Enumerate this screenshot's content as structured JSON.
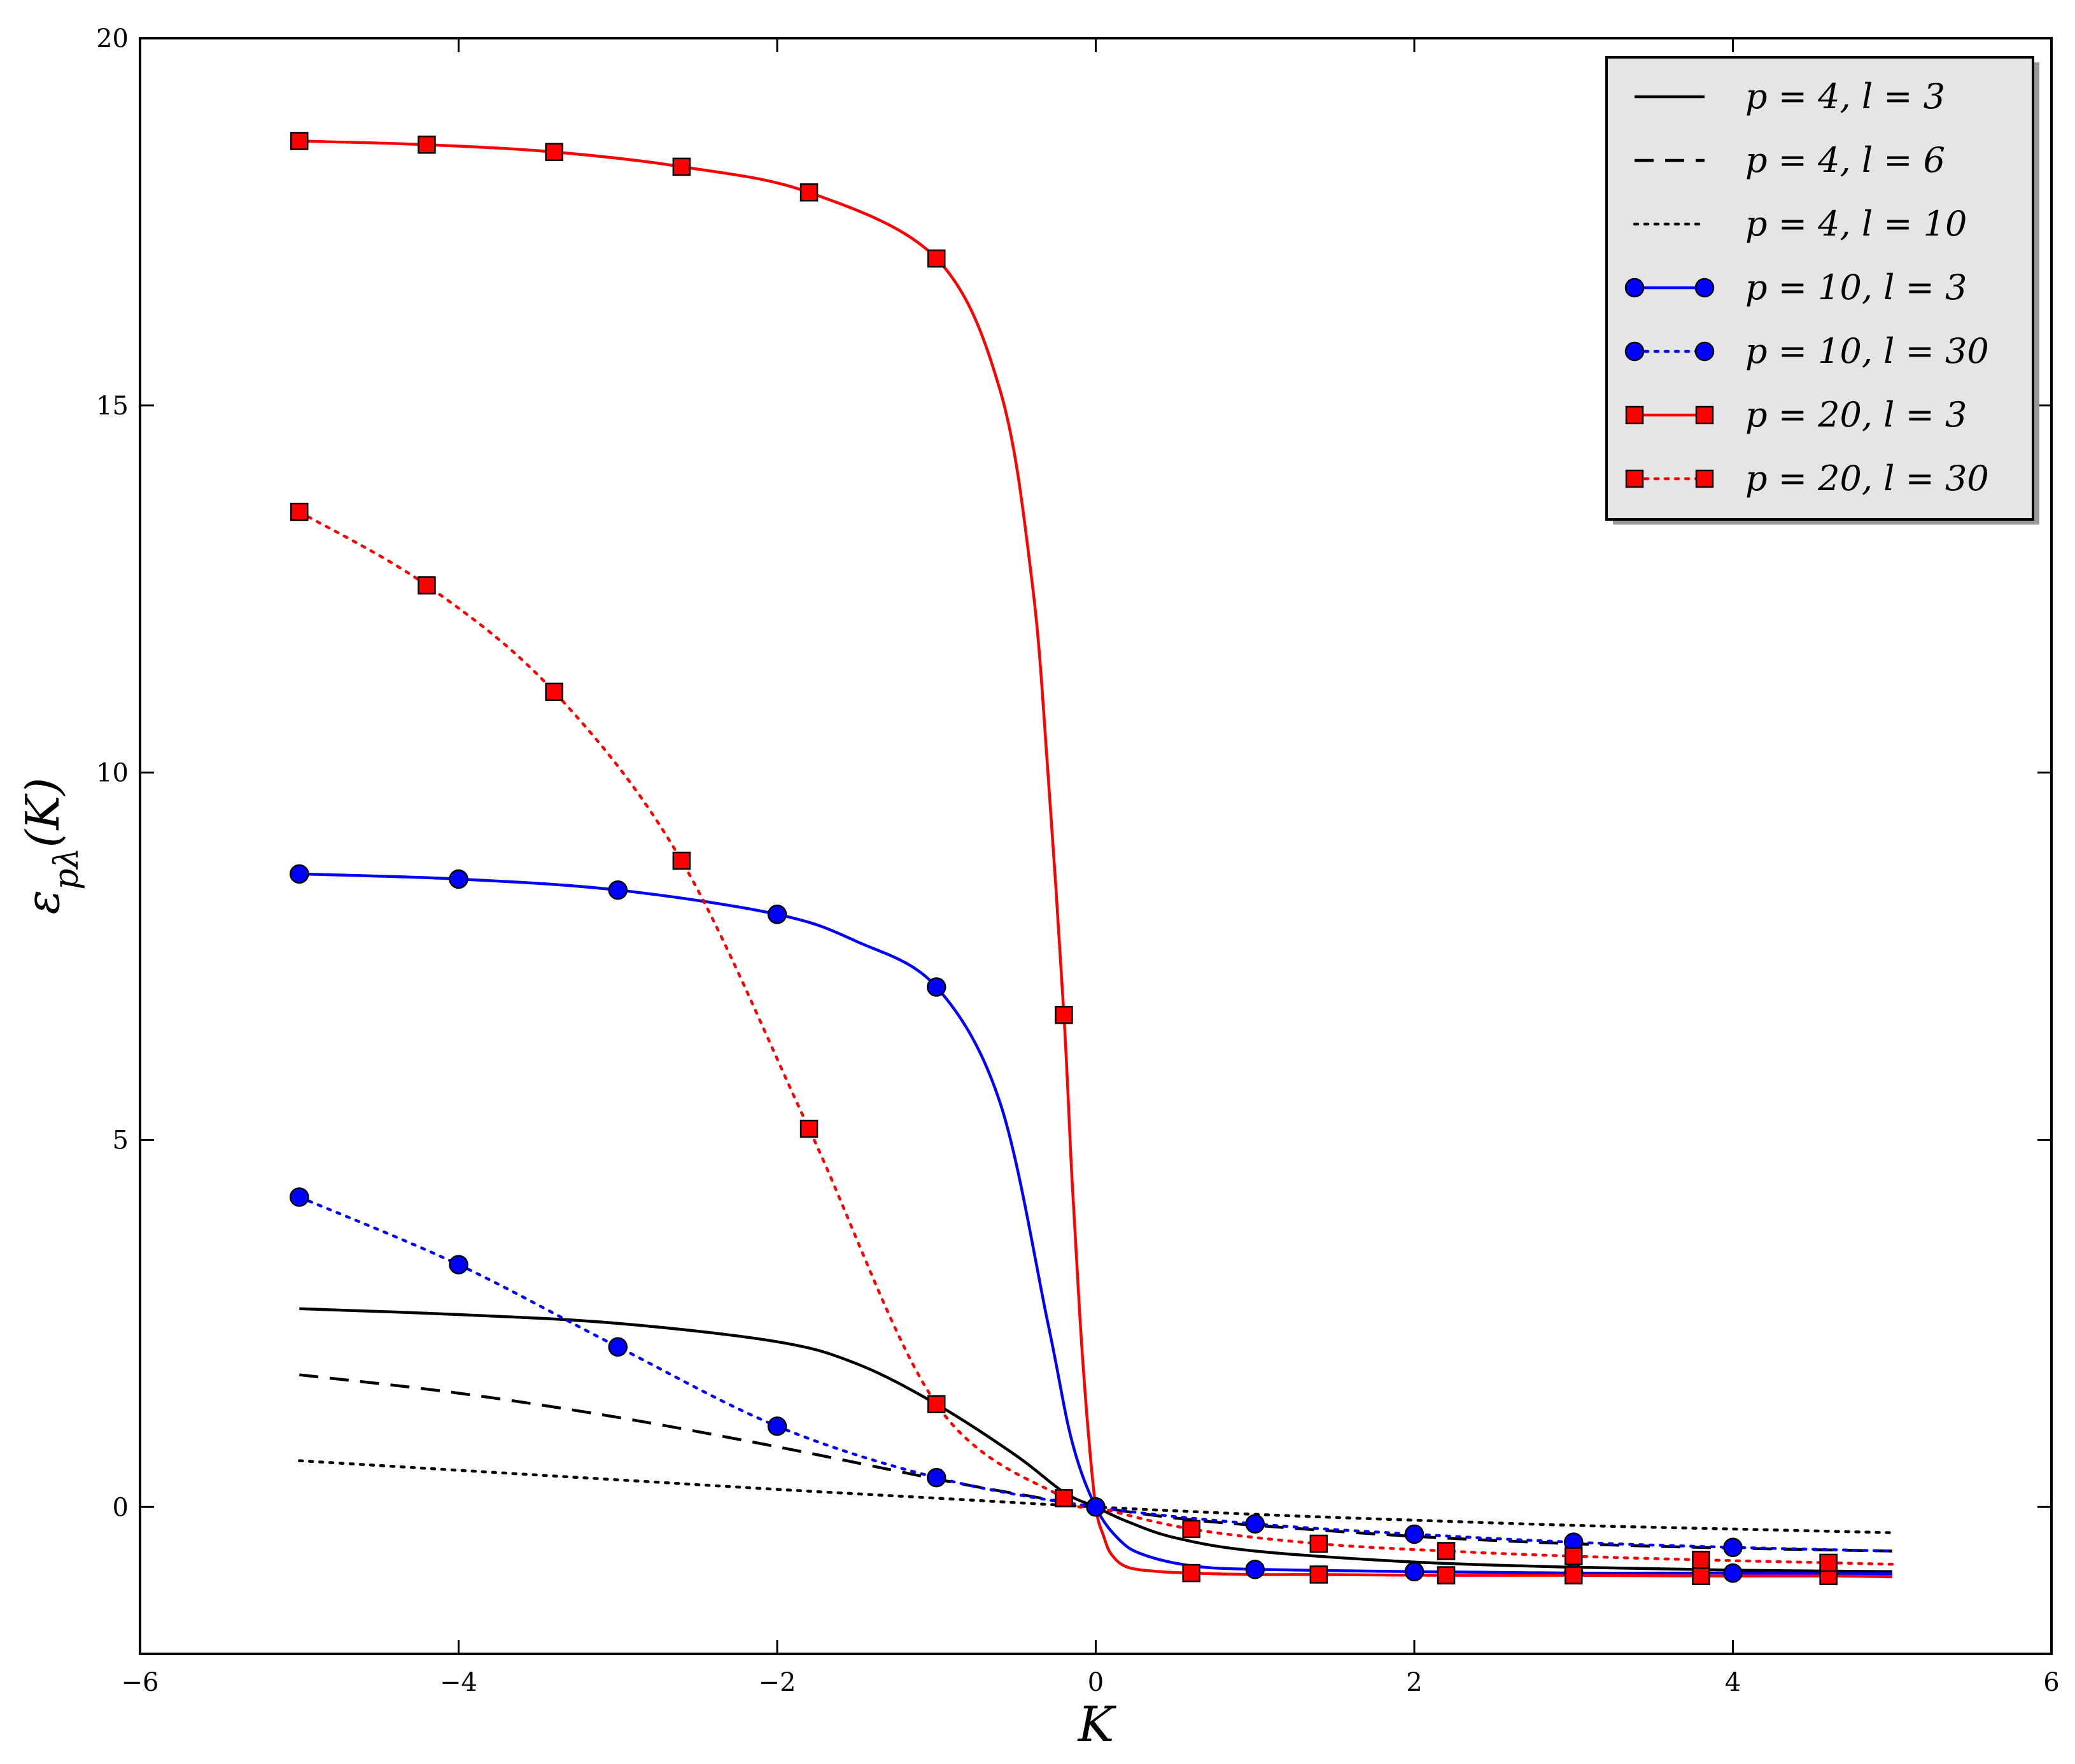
{
  "chart_data": {
    "type": "line",
    "xlabel": "K",
    "ylabel": "ε_{pλ}(K)",
    "xlim": [
      -6,
      6
    ],
    "ylim": [
      -2,
      20
    ],
    "xticks": [
      -6,
      -4,
      -2,
      0,
      2,
      4,
      6
    ],
    "xtick_labels": [
      "−6",
      "−4",
      "−2",
      "0",
      "2",
      "4",
      "6"
    ],
    "yticks": [
      0,
      5,
      10,
      15,
      20
    ],
    "ytick_labels": [
      "0",
      "5",
      "10",
      "15",
      "20"
    ],
    "grid": false,
    "legend_position": "top-right",
    "series": [
      {
        "name": "p = 4, l = 3",
        "color": "#000000",
        "dash": "solid",
        "marker": "none",
        "x": [
          -5,
          -4,
          -3,
          -2,
          -1.5,
          -1,
          -0.5,
          -0.2,
          0,
          0.2,
          0.5,
          1,
          2,
          3,
          4,
          5
        ],
        "y": [
          2.7,
          2.62,
          2.5,
          2.25,
          1.95,
          1.4,
          0.7,
          0.2,
          0,
          -0.2,
          -0.42,
          -0.6,
          -0.75,
          -0.82,
          -0.86,
          -0.88
        ]
      },
      {
        "name": "p = 4, l = 6",
        "color": "#000000",
        "dash": "dashed",
        "marker": "none",
        "x": [
          -5,
          -4,
          -3,
          -2,
          -1,
          -0.5,
          0,
          0.5,
          1,
          2,
          3,
          4,
          5
        ],
        "y": [
          1.8,
          1.55,
          1.22,
          0.82,
          0.38,
          0.18,
          0,
          -0.15,
          -0.25,
          -0.4,
          -0.5,
          -0.56,
          -0.6
        ]
      },
      {
        "name": "p = 4, l = 10",
        "color": "#000000",
        "dash": "dotted",
        "marker": "none",
        "x": [
          -5,
          -4,
          -3,
          -2,
          -1,
          0,
          1,
          2,
          3,
          4,
          5
        ],
        "y": [
          0.63,
          0.5,
          0.37,
          0.24,
          0.12,
          0,
          -0.1,
          -0.18,
          -0.25,
          -0.3,
          -0.35
        ]
      },
      {
        "name": "p = 10, l = 3",
        "color": "#0000ff",
        "dash": "solid",
        "marker": "circle",
        "x": [
          -5,
          -4,
          -3,
          -2,
          -1.5,
          -1,
          -0.6,
          -0.3,
          -0.15,
          0,
          0.15,
          0.3,
          0.6,
          1,
          2,
          3,
          4,
          5
        ],
        "y": [
          8.62,
          8.55,
          8.4,
          8.07,
          7.7,
          7.08,
          5.5,
          2.5,
          0.9,
          0,
          -0.45,
          -0.65,
          -0.8,
          -0.85,
          -0.88,
          -0.9,
          -0.9,
          -0.91
        ],
        "marker_x": [
          -5,
          -4,
          -3,
          -2,
          -1,
          0,
          1,
          2,
          3,
          4
        ],
        "marker_y": [
          8.62,
          8.55,
          8.4,
          8.07,
          7.08,
          0,
          -0.85,
          -0.88,
          -0.9,
          -0.9
        ]
      },
      {
        "name": "p = 10, l = 30",
        "color": "#0000ff",
        "dash": "dotted",
        "marker": "circle",
        "x": [
          -5,
          -4,
          -3,
          -2,
          -1,
          0,
          1,
          2,
          3,
          4,
          5
        ],
        "y": [
          4.22,
          3.3,
          2.18,
          1.1,
          0.4,
          0,
          -0.23,
          -0.37,
          -0.48,
          -0.55,
          -0.6
        ],
        "marker_x": [
          -5,
          -4,
          -3,
          -2,
          -1,
          0,
          1,
          2,
          3,
          4
        ],
        "marker_y": [
          4.22,
          3.3,
          2.18,
          1.1,
          0.4,
          0,
          -0.23,
          -0.37,
          -0.48,
          -0.55
        ]
      },
      {
        "name": "p = 20, l = 3",
        "color": "#ff0000",
        "dash": "solid",
        "marker": "square",
        "x": [
          -5,
          -4.2,
          -3.4,
          -2.6,
          -1.8,
          -1,
          -0.6,
          -0.4,
          -0.3,
          -0.2,
          -0.15,
          -0.1,
          -0.05,
          0,
          0.05,
          0.1,
          0.2,
          0.4,
          0.6,
          1,
          1.4,
          2.2,
          3,
          3.8,
          4.6,
          5
        ],
        "y": [
          18.6,
          18.55,
          18.45,
          18.25,
          17.9,
          17.0,
          15.2,
          12.6,
          10.0,
          6.7,
          4.5,
          2.6,
          1.1,
          0,
          -0.4,
          -0.65,
          -0.82,
          -0.88,
          -0.9,
          -0.92,
          -0.92,
          -0.93,
          -0.93,
          -0.94,
          -0.94,
          -0.95
        ],
        "marker_x": [
          -5,
          -4.2,
          -3.4,
          -2.6,
          -1.8,
          -1,
          -0.2,
          0.6,
          1.4,
          2.2,
          3,
          3.8,
          4.6
        ],
        "marker_y": [
          18.6,
          18.55,
          18.45,
          18.25,
          17.9,
          17.0,
          6.7,
          -0.9,
          -0.92,
          -0.93,
          -0.93,
          -0.94,
          -0.94
        ]
      },
      {
        "name": "p = 20, l = 30",
        "color": "#ff0000",
        "dash": "dotted",
        "marker": "square",
        "x": [
          -5,
          -4.2,
          -3.4,
          -2.6,
          -1.8,
          -1,
          -0.2,
          0,
          0.6,
          1.4,
          2.2,
          3,
          3.8,
          4.6,
          5
        ],
        "y": [
          13.55,
          12.55,
          11.1,
          8.8,
          5.15,
          1.4,
          0.12,
          0,
          -0.3,
          -0.5,
          -0.6,
          -0.67,
          -0.72,
          -0.76,
          -0.78
        ],
        "marker_x": [
          -5,
          -4.2,
          -3.4,
          -2.6,
          -1.8,
          -1,
          -0.2,
          0.6,
          1.4,
          2.2,
          3,
          3.8,
          4.6
        ],
        "marker_y": [
          13.55,
          12.55,
          11.1,
          8.8,
          5.15,
          1.4,
          0.12,
          -0.3,
          -0.5,
          -0.6,
          -0.67,
          -0.72,
          -0.76
        ]
      }
    ]
  }
}
